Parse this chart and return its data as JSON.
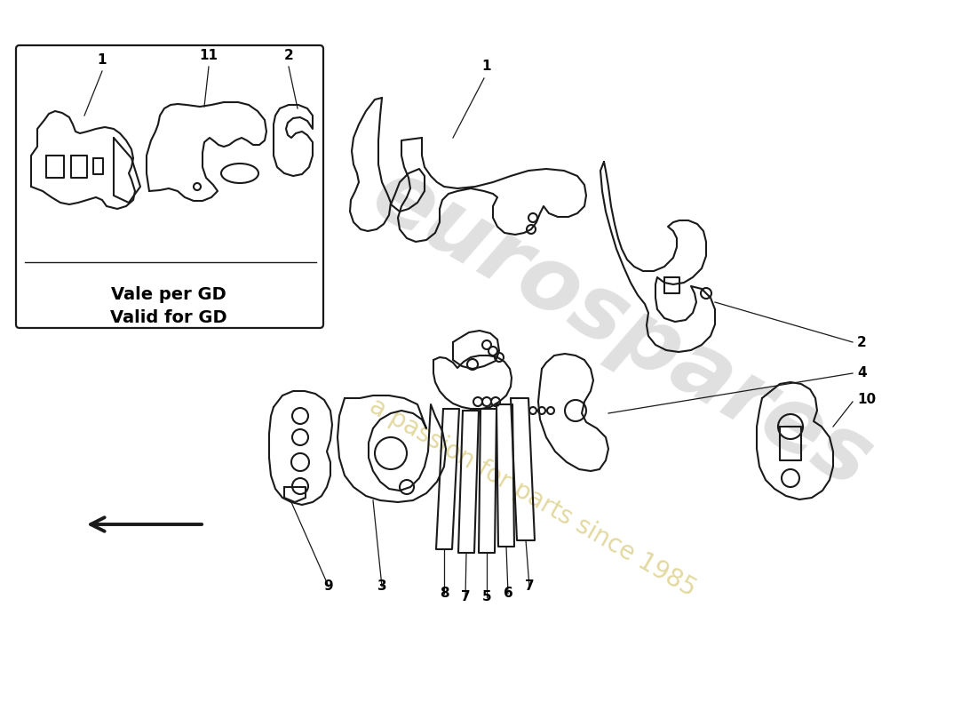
{
  "background_color": "#ffffff",
  "line_color": "#1a1a1a",
  "line_width": 1.5,
  "wm1": "eurospares",
  "wm2": "a passion for parts since 1985",
  "wm_col1": "#bbbbbb",
  "wm_col2": "#d0c060",
  "inset_text1": "Vale per GD",
  "inset_text2": "Valid for GD",
  "lfs": 11
}
